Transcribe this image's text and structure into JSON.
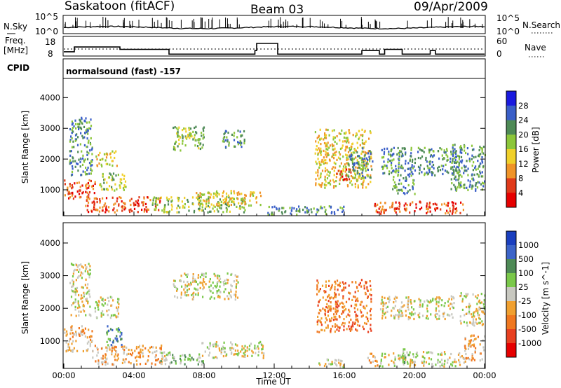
{
  "header": {
    "station": "Saskatoon (fitACF)",
    "beam": "Beam 03",
    "date": "09/Apr/2009"
  },
  "sky_panel": {
    "left_label": "N.Sky",
    "right_label": "N.Search",
    "y_ticks_left": [
      "10^5",
      "10^0"
    ],
    "y_ticks_right": [
      "10^5",
      "10^0"
    ]
  },
  "freq_panel": {
    "left_label_1": "Freq.",
    "left_label_2": "[MHz]",
    "right_label": "Nave",
    "y_ticks_left": [
      "18",
      "8"
    ],
    "y_ticks_right": [
      "60",
      "0"
    ],
    "freq_steps_hours": [
      [
        0,
        11
      ],
      [
        0.6,
        15
      ],
      [
        3.2,
        13
      ],
      [
        6.0,
        9
      ],
      [
        10.9,
        12
      ],
      [
        11.0,
        18
      ],
      [
        12.2,
        9
      ],
      [
        17.0,
        12
      ],
      [
        18.0,
        9
      ],
      [
        18.3,
        13
      ],
      [
        19.3,
        9
      ],
      [
        20.9,
        12
      ],
      [
        21.2,
        9
      ],
      [
        24,
        9
      ]
    ]
  },
  "cpid": {
    "label": "CPID",
    "text": "normalsound (fast) -157"
  },
  "chart_data": [
    {
      "type": "heatmap",
      "title": "",
      "ylabel": "Slant Range [km]",
      "xlabel": "",
      "x_unit": "hours UT",
      "xlim": [
        0,
        24
      ],
      "ylim": [
        180,
        4600
      ],
      "y_ticks": [
        "1000",
        "2000",
        "3000",
        "4000"
      ],
      "colorbar_label": "Power [dB]",
      "colorbar_ticks": [
        "4",
        "8",
        "12",
        "16",
        "20",
        "24",
        "28"
      ],
      "colors": [
        "#1a1adf",
        "#3a5fc8",
        "#4e8a56",
        "#8cc63a",
        "#f0d02a",
        "#f09428",
        "#e03a1a",
        "#e60000"
      ],
      "regions": [
        {
          "t0": 0.0,
          "t1": 1.8,
          "r0": 750,
          "r1": 1350,
          "level": 6
        },
        {
          "t0": 0.3,
          "t1": 1.6,
          "r0": 1500,
          "r1": 3400,
          "level": 2
        },
        {
          "t0": 1.2,
          "t1": 5.5,
          "r0": 300,
          "r1": 800,
          "level": 6
        },
        {
          "t0": 1.8,
          "t1": 3.0,
          "r0": 1800,
          "r1": 2300,
          "level": 4
        },
        {
          "t0": 2.0,
          "t1": 3.5,
          "r0": 1000,
          "r1": 1600,
          "level": 3
        },
        {
          "t0": 5.0,
          "t1": 10.3,
          "r0": 300,
          "r1": 800,
          "level": 3
        },
        {
          "t0": 6.2,
          "t1": 8.0,
          "r0": 2300,
          "r1": 3100,
          "level": 3
        },
        {
          "t0": 9.0,
          "t1": 10.3,
          "r0": 2400,
          "r1": 3000,
          "level": 2
        },
        {
          "t0": 7.5,
          "t1": 11.3,
          "r0": 500,
          "r1": 1000,
          "level": 4
        },
        {
          "t0": 11.5,
          "t1": 16.0,
          "r0": 220,
          "r1": 500,
          "level": 2
        },
        {
          "t0": 14.3,
          "t1": 17.5,
          "r0": 1100,
          "r1": 3000,
          "level": 4
        },
        {
          "t0": 15.5,
          "t1": 16.5,
          "r0": 1300,
          "r1": 1700,
          "level": 6
        },
        {
          "t0": 16.2,
          "t1": 17.6,
          "r0": 1400,
          "r1": 2400,
          "level": 2
        },
        {
          "t0": 17.6,
          "t1": 22.8,
          "r0": 250,
          "r1": 650,
          "level": 6
        },
        {
          "t0": 18.0,
          "t1": 22.7,
          "r0": 1500,
          "r1": 2400,
          "level": 2
        },
        {
          "t0": 18.7,
          "t1": 20.0,
          "r0": 900,
          "r1": 1500,
          "level": 2
        },
        {
          "t0": 22.0,
          "t1": 24.0,
          "r0": 1000,
          "r1": 2500,
          "level": 2
        }
      ]
    },
    {
      "type": "heatmap",
      "title": "",
      "ylabel": "Slant Range [km]",
      "xlabel": "Time UT",
      "x_unit": "hours UT",
      "xlim": [
        0,
        24
      ],
      "ylim": [
        180,
        4600
      ],
      "x_ticks": [
        "00:00",
        "04:00",
        "08:00",
        "12:00",
        "16:00",
        "20:00",
        "00:00"
      ],
      "y_ticks": [
        "1000",
        "2000",
        "3000",
        "4000"
      ],
      "colorbar_label": "Velocity [m s^-1]",
      "colorbar_ticks": [
        "1000",
        "500",
        "100",
        "25",
        "-25",
        "-100",
        "-500",
        "-1000"
      ],
      "colors": [
        "#1a3fbf",
        "#3c64c8",
        "#4e8a56",
        "#7ac84a",
        "#c8c8c0",
        "#f0a030",
        "#f07820",
        "#e84020",
        "#e60000"
      ],
      "regions": [
        {
          "t0": 0.0,
          "t1": 1.6,
          "r0": 700,
          "r1": 1500,
          "level": 5
        },
        {
          "t0": 0.3,
          "t1": 1.5,
          "r0": 1800,
          "r1": 3400,
          "level": 4
        },
        {
          "t0": 1.5,
          "t1": 5.8,
          "r0": 300,
          "r1": 900,
          "level": 5
        },
        {
          "t0": 1.7,
          "t1": 3.1,
          "r0": 1700,
          "r1": 2400,
          "level": 4
        },
        {
          "t0": 2.3,
          "t1": 3.3,
          "r0": 900,
          "r1": 1500,
          "level": 2
        },
        {
          "t0": 5.5,
          "t1": 8.0,
          "r0": 300,
          "r1": 700,
          "level": 3
        },
        {
          "t0": 6.2,
          "t1": 9.9,
          "r0": 2300,
          "r1": 3100,
          "level": 4
        },
        {
          "t0": 7.8,
          "t1": 11.4,
          "r0": 500,
          "r1": 1000,
          "level": 4
        },
        {
          "t0": 14.4,
          "t1": 17.5,
          "r0": 1300,
          "r1": 2900,
          "level": 6
        },
        {
          "t0": 14.5,
          "t1": 16.0,
          "r0": 220,
          "r1": 500,
          "level": 4
        },
        {
          "t0": 17.3,
          "t1": 17.9,
          "r0": 250,
          "r1": 700,
          "level": 5
        },
        {
          "t0": 18.0,
          "t1": 22.8,
          "r0": 250,
          "r1": 700,
          "level": 4
        },
        {
          "t0": 19.2,
          "t1": 19.7,
          "r0": 250,
          "r1": 800,
          "level": 3
        },
        {
          "t0": 18.0,
          "t1": 22.3,
          "r0": 1700,
          "r1": 2400,
          "level": 4
        },
        {
          "t0": 22.8,
          "t1": 24.0,
          "r0": 400,
          "r1": 1200,
          "level": 5
        },
        {
          "t0": 22.5,
          "t1": 24.0,
          "r0": 1500,
          "r1": 2500,
          "level": 4
        }
      ]
    }
  ]
}
